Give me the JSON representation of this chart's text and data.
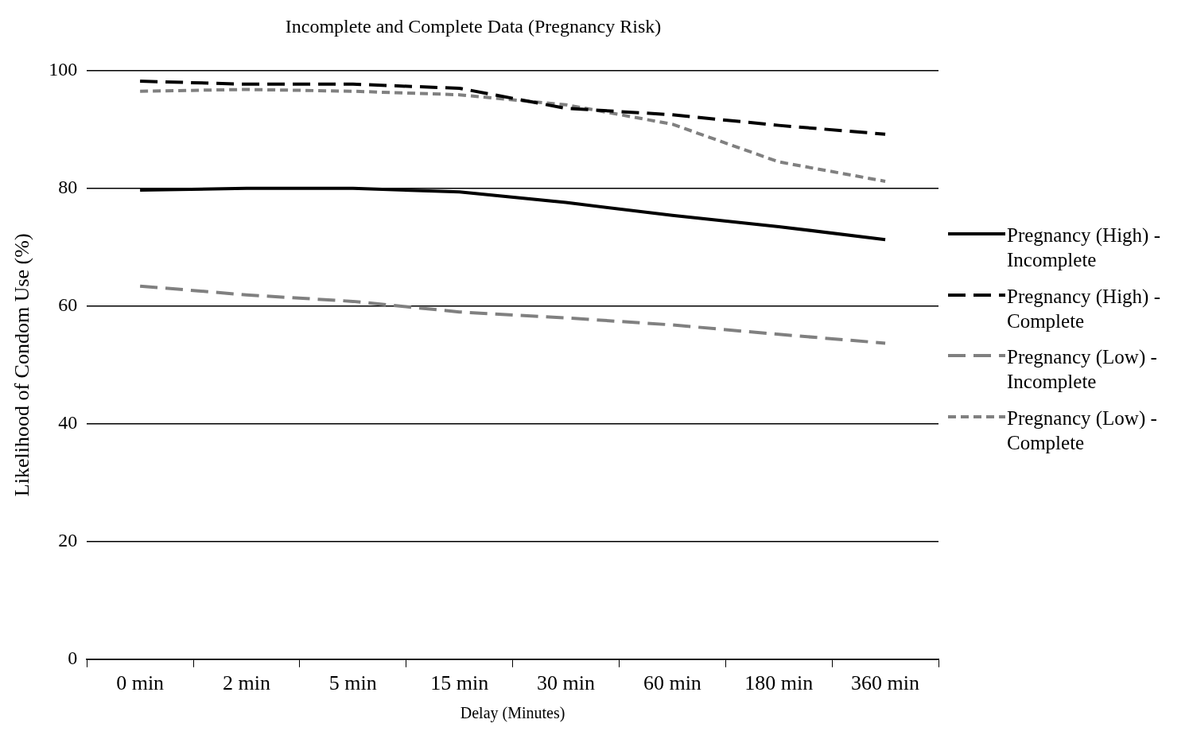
{
  "chart_data": {
    "type": "line",
    "title": "Incomplete and Complete Data (Pregnancy Risk)",
    "xlabel": "Delay (Minutes)",
    "ylabel": "Likelihood of Condom Use (%)",
    "categories": [
      "0 min",
      "2 min",
      "5 min",
      "15 min",
      "30 min",
      "60 min",
      "180 min",
      "360 min"
    ],
    "series": [
      {
        "name": "Pregnancy (High) - Incomplete",
        "color": "#000000",
        "line_style": "solid",
        "values": [
          79.7,
          80.0,
          80.0,
          79.4,
          77.6,
          75.4,
          73.5,
          71.3
        ]
      },
      {
        "name": "Pregnancy (High) - Complete",
        "color": "#000000",
        "line_style": "dashed",
        "values": [
          98.2,
          97.7,
          97.7,
          97.0,
          93.6,
          92.5,
          90.7,
          89.2
        ]
      },
      {
        "name": "Pregnancy (Low) - Incomplete",
        "color": "#808080",
        "line_style": "dashed",
        "values": [
          63.4,
          61.9,
          60.8,
          59.0,
          58.0,
          56.8,
          55.2,
          53.7
        ]
      },
      {
        "name": "Pregnancy (Low) - Complete",
        "color": "#808080",
        "line_style": "dotted",
        "values": [
          96.5,
          96.8,
          96.5,
          95.9,
          94.2,
          90.9,
          84.5,
          81.2
        ]
      }
    ],
    "ylim": [
      0,
      100
    ],
    "yticks": [
      0,
      20,
      40,
      60,
      80,
      100
    ],
    "grid": "y",
    "legend": "right",
    "marker": "none"
  }
}
